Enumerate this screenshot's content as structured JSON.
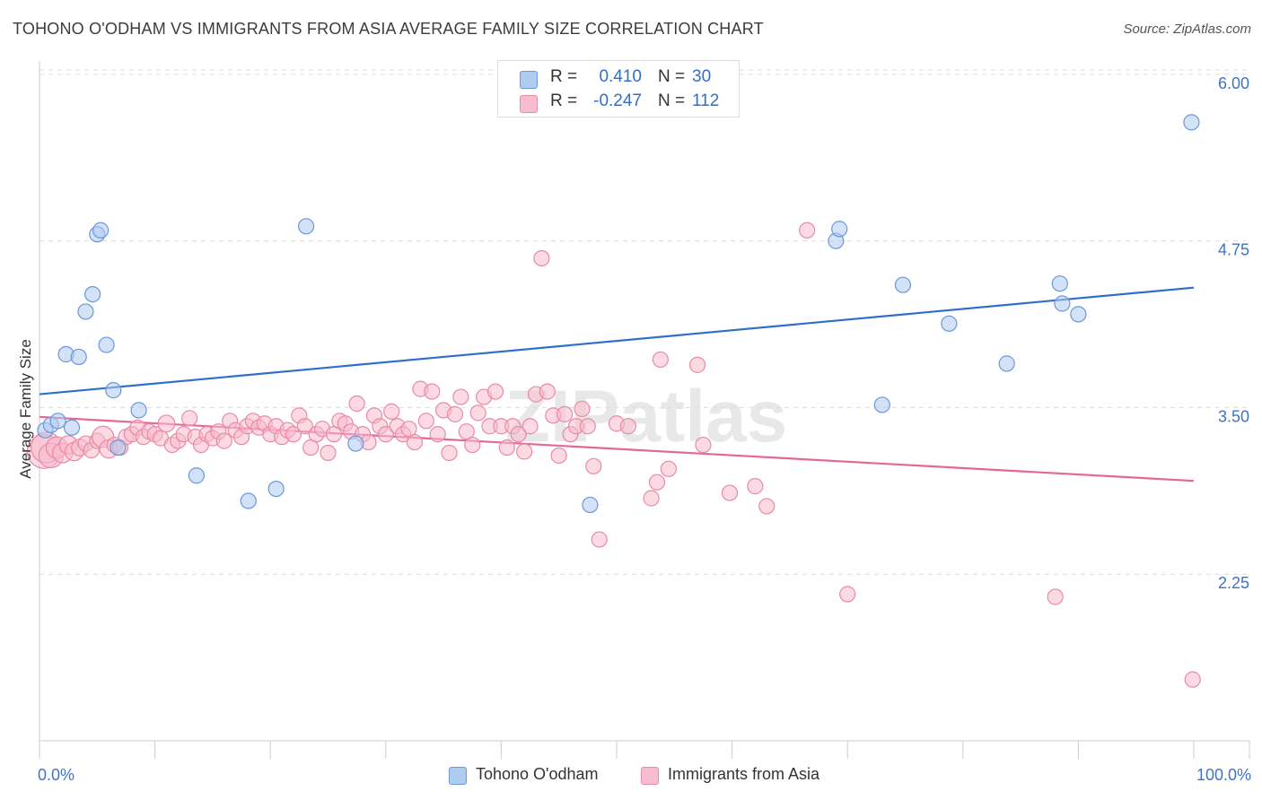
{
  "title": "TOHONO O'ODHAM VS IMMIGRANTS FROM ASIA AVERAGE FAMILY SIZE CORRELATION CHART",
  "source": "Source: ZipAtlas.com",
  "watermark": "ZIPatlas",
  "legend_top": {
    "rows": [
      {
        "r_label": "R =",
        "r_value": "0.410",
        "n_label": "N =",
        "n_value": "30"
      },
      {
        "r_label": "R =",
        "r_value": "-0.247",
        "n_label": "N =",
        "n_value": "112"
      }
    ]
  },
  "legend_bottom": {
    "items": [
      {
        "label": "Tohono O'odham"
      },
      {
        "label": "Immigrants from Asia"
      }
    ]
  },
  "colors": {
    "blue_fill": "#aecbf0",
    "blue_stroke": "#6a98d8",
    "blue_line": "#2f6fc9",
    "pink_fill": "#f7bccd",
    "pink_stroke": "#e98aa7",
    "pink_line": "#e4679a",
    "tick_text": "#3f73c4",
    "grid": "#dcdcdc"
  },
  "chart_data": {
    "type": "scatter",
    "ylabel": "Average Family Size",
    "xlabel": "",
    "xlim": [
      0,
      100
    ],
    "ylim": [
      1.0,
      6.1
    ],
    "x_tick_labels": [
      {
        "value": 0,
        "label": "0.0%"
      },
      {
        "value": 100,
        "label": "100.0%"
      }
    ],
    "y_ticks": [
      {
        "value": 2.25,
        "label": "2.25"
      },
      {
        "value": 3.5,
        "label": "3.50"
      },
      {
        "value": 4.75,
        "label": "4.75"
      },
      {
        "value": 6.0,
        "label": "6.00"
      }
    ],
    "x_minor_ticks": [
      0,
      10,
      20,
      30,
      40,
      50,
      60,
      70,
      80,
      90,
      100
    ],
    "series": [
      {
        "name": "Tohono O'odham",
        "color": "blue",
        "trend": {
          "x0": 0,
          "y0": 3.6,
          "x1": 100,
          "y1": 4.4
        },
        "points": [
          [
            0.5,
            3.33,
            10
          ],
          [
            1.0,
            3.37,
            10
          ],
          [
            1.6,
            3.4,
            10
          ],
          [
            2.8,
            3.35,
            10
          ],
          [
            2.3,
            3.9,
            10
          ],
          [
            3.4,
            3.88,
            10
          ],
          [
            4.0,
            4.22,
            10
          ],
          [
            4.6,
            4.35,
            10
          ],
          [
            5.0,
            4.8,
            10
          ],
          [
            5.3,
            4.83,
            10
          ],
          [
            5.8,
            3.97,
            10
          ],
          [
            6.4,
            3.63,
            10
          ],
          [
            6.8,
            3.2,
            10
          ],
          [
            8.6,
            3.48,
            10
          ],
          [
            13.6,
            2.99,
            10
          ],
          [
            18.1,
            2.8,
            10
          ],
          [
            20.5,
            2.89,
            10
          ],
          [
            23.1,
            4.86,
            10
          ],
          [
            27.4,
            3.23,
            10
          ],
          [
            47.7,
            2.77,
            10
          ],
          [
            69.0,
            4.75,
            10
          ],
          [
            69.3,
            4.84,
            10
          ],
          [
            73.0,
            3.52,
            10
          ],
          [
            74.8,
            4.42,
            10
          ],
          [
            78.8,
            4.13,
            10
          ],
          [
            83.8,
            3.83,
            10
          ],
          [
            88.4,
            4.43,
            10
          ],
          [
            88.6,
            4.28,
            10
          ],
          [
            90.0,
            4.2,
            10
          ],
          [
            99.8,
            5.64,
            10
          ]
        ]
      },
      {
        "name": "Immigrants from Asia",
        "color": "pink",
        "trend": {
          "x0": 0,
          "y0": 3.43,
          "x1": 100,
          "y1": 2.95
        },
        "points": [
          [
            0.4,
            3.17,
            22
          ],
          [
            0.6,
            3.2,
            20
          ],
          [
            1.0,
            3.14,
            16
          ],
          [
            1.5,
            3.2,
            14
          ],
          [
            2.0,
            3.16,
            13
          ],
          [
            2.5,
            3.22,
            12
          ],
          [
            3.0,
            3.17,
            12
          ],
          [
            3.5,
            3.2,
            11
          ],
          [
            4.0,
            3.23,
            10
          ],
          [
            4.5,
            3.18,
            10
          ],
          [
            5.0,
            3.25,
            10
          ],
          [
            5.5,
            3.28,
            14
          ],
          [
            6.0,
            3.19,
            12
          ],
          [
            6.5,
            3.22,
            10
          ],
          [
            7.0,
            3.2,
            10
          ],
          [
            7.5,
            3.28,
            10
          ],
          [
            8.0,
            3.3,
            10
          ],
          [
            8.5,
            3.35,
            10
          ],
          [
            9.0,
            3.28,
            10
          ],
          [
            9.5,
            3.32,
            10
          ],
          [
            10.0,
            3.3,
            10
          ],
          [
            10.5,
            3.27,
            10
          ],
          [
            11.0,
            3.38,
            11
          ],
          [
            11.5,
            3.22,
            10
          ],
          [
            12.0,
            3.25,
            10
          ],
          [
            12.5,
            3.3,
            10
          ],
          [
            13.0,
            3.42,
            10
          ],
          [
            13.5,
            3.28,
            10
          ],
          [
            14.0,
            3.22,
            10
          ],
          [
            14.5,
            3.3,
            10
          ],
          [
            15.0,
            3.27,
            10
          ],
          [
            15.5,
            3.32,
            10
          ],
          [
            16.0,
            3.25,
            10
          ],
          [
            16.5,
            3.4,
            10
          ],
          [
            17.0,
            3.33,
            10
          ],
          [
            17.5,
            3.28,
            10
          ],
          [
            18.0,
            3.36,
            10
          ],
          [
            18.5,
            3.4,
            10
          ],
          [
            19.0,
            3.35,
            10
          ],
          [
            19.5,
            3.38,
            10
          ],
          [
            20.0,
            3.3,
            10
          ],
          [
            20.5,
            3.36,
            10
          ],
          [
            21.0,
            3.28,
            10
          ],
          [
            21.5,
            3.33,
            10
          ],
          [
            22.0,
            3.3,
            10
          ],
          [
            22.5,
            3.44,
            10
          ],
          [
            23.0,
            3.36,
            10
          ],
          [
            23.5,
            3.2,
            10
          ],
          [
            24.0,
            3.3,
            10
          ],
          [
            24.5,
            3.34,
            10
          ],
          [
            25.0,
            3.16,
            10
          ],
          [
            25.5,
            3.3,
            10
          ],
          [
            26.0,
            3.4,
            10
          ],
          [
            26.5,
            3.38,
            10
          ],
          [
            27.0,
            3.32,
            10
          ],
          [
            27.5,
            3.53,
            10
          ],
          [
            28.0,
            3.3,
            10
          ],
          [
            28.5,
            3.24,
            10
          ],
          [
            29.0,
            3.44,
            10
          ],
          [
            29.5,
            3.36,
            10
          ],
          [
            30.0,
            3.3,
            10
          ],
          [
            30.5,
            3.47,
            10
          ],
          [
            31.0,
            3.36,
            10
          ],
          [
            31.5,
            3.3,
            10
          ],
          [
            32.0,
            3.34,
            10
          ],
          [
            32.5,
            3.24,
            10
          ],
          [
            33.0,
            3.64,
            10
          ],
          [
            33.5,
            3.4,
            10
          ],
          [
            34.0,
            3.62,
            10
          ],
          [
            34.5,
            3.3,
            10
          ],
          [
            35.0,
            3.48,
            10
          ],
          [
            35.5,
            3.16,
            10
          ],
          [
            36.0,
            3.45,
            10
          ],
          [
            36.5,
            3.58,
            10
          ],
          [
            37.0,
            3.32,
            10
          ],
          [
            37.5,
            3.22,
            10
          ],
          [
            38.0,
            3.46,
            10
          ],
          [
            38.5,
            3.58,
            10
          ],
          [
            39.0,
            3.36,
            10
          ],
          [
            39.5,
            3.62,
            10
          ],
          [
            40.0,
            3.36,
            10
          ],
          [
            40.5,
            3.2,
            10
          ],
          [
            41.0,
            3.36,
            10
          ],
          [
            41.5,
            3.3,
            10
          ],
          [
            42.0,
            3.17,
            10
          ],
          [
            42.5,
            3.36,
            10
          ],
          [
            43.0,
            3.6,
            10
          ],
          [
            43.5,
            4.62,
            10
          ],
          [
            44.0,
            3.62,
            10
          ],
          [
            44.5,
            3.44,
            10
          ],
          [
            45.0,
            3.14,
            10
          ],
          [
            45.5,
            3.45,
            10
          ],
          [
            46.0,
            3.3,
            10
          ],
          [
            46.5,
            3.36,
            10
          ],
          [
            47.0,
            3.49,
            10
          ],
          [
            47.5,
            3.36,
            10
          ],
          [
            48.0,
            3.06,
            10
          ],
          [
            48.5,
            2.51,
            10
          ],
          [
            50.0,
            3.38,
            10
          ],
          [
            51.0,
            3.36,
            10
          ],
          [
            53.0,
            2.82,
            10
          ],
          [
            53.5,
            2.94,
            10
          ],
          [
            53.8,
            3.86,
            10
          ],
          [
            54.5,
            3.04,
            10
          ],
          [
            57.0,
            3.82,
            10
          ],
          [
            57.5,
            3.22,
            10
          ],
          [
            59.8,
            2.86,
            10
          ],
          [
            62.0,
            2.91,
            10
          ],
          [
            63.0,
            2.76,
            10
          ],
          [
            66.5,
            4.83,
            10
          ],
          [
            70.0,
            2.1,
            10
          ],
          [
            88.0,
            2.08,
            10
          ],
          [
            99.9,
            1.46,
            10
          ]
        ]
      }
    ]
  }
}
